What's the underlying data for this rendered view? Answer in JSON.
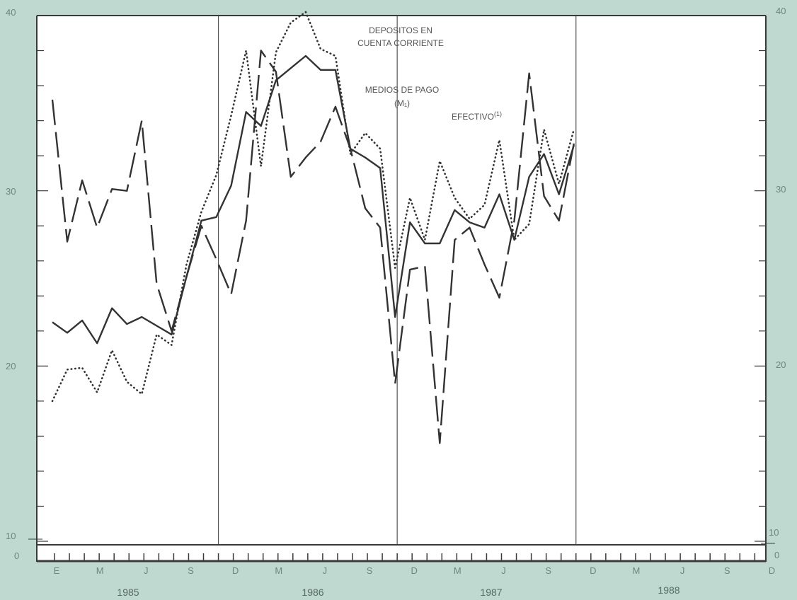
{
  "chart_data": {
    "type": "line",
    "title": "",
    "xlabel": "",
    "ylabel": "",
    "y_ticks_left": [
      "40",
      "30",
      "20",
      "10",
      "0"
    ],
    "y_ticks_right": [
      "40",
      "30",
      "20",
      "10",
      "0"
    ],
    "ylim": [
      0,
      40
    ],
    "axis_break": "between 0 and 10",
    "grid": "vertical lines at each December",
    "x_month_ticks": [
      "E",
      "M",
      "J",
      "S",
      "D",
      "M",
      "J",
      "S",
      "D",
      "M",
      "J",
      "S",
      "D",
      "M",
      "J",
      "S",
      "D"
    ],
    "x_years": [
      "1985",
      "1986",
      "1987",
      "1988"
    ],
    "x": [
      "E-1985",
      "F-1985",
      "M-1985",
      "A-1985",
      "M-1985",
      "J-1985",
      "J-1985",
      "A-1985",
      "S-1985",
      "O-1985",
      "N-1985",
      "D-1985",
      "E-1986",
      "F-1986",
      "M-1986",
      "A-1986",
      "M-1986",
      "J-1986",
      "J-1986",
      "A-1986",
      "S-1986",
      "O-1986",
      "N-1986",
      "D-1986",
      "E-1987",
      "F-1987",
      "M-1987",
      "A-1987",
      "M-1987",
      "J-1987",
      "J-1987",
      "A-1987",
      "S-1987",
      "O-1987",
      "N-1987",
      "D-1987"
    ],
    "series": [
      {
        "name": "MEDIOS DE PAGO",
        "name_sub": "(M₁)",
        "style": "solid",
        "values": [
          22.5,
          21.9,
          22.6,
          21.3,
          23.3,
          22.4,
          22.8,
          22.3,
          21.8,
          25.1,
          28.3,
          28.5,
          30.3,
          34.5,
          33.7,
          36.3,
          37,
          37.7,
          36.9,
          36.9,
          32.4,
          31.9,
          31.3,
          22.8,
          28.2,
          27,
          27,
          28.9,
          28.2,
          27.9,
          29.8,
          27.2,
          30.8,
          32.1,
          29.8,
          32.6
        ]
      },
      {
        "name": "DEPOSITOS EN",
        "name_line2": "CUENTA CORRIENTE",
        "style": "dotted",
        "values": [
          18,
          19.8,
          19.9,
          18.5,
          20.9,
          19.1,
          18.4,
          21.8,
          21.2,
          25.8,
          28.8,
          30.9,
          34.3,
          38,
          31.4,
          37.9,
          39.6,
          40.2,
          38.1,
          37.7,
          32.1,
          33.3,
          32.4,
          25.6,
          29.6,
          27.2,
          31.7,
          29.6,
          28.4,
          29.2,
          32.9,
          27.2,
          28.1,
          33.5,
          30.4,
          33.5
        ]
      },
      {
        "name": "EFECTIVO",
        "name_sup": "(1)",
        "style": "dashed",
        "values": [
          35.2,
          27.1,
          30.6,
          27.9,
          30.1,
          30,
          34,
          24.7,
          22,
          25.1,
          28,
          26.1,
          24.1,
          28.3,
          38,
          36.8,
          30.8,
          31.9,
          32.8,
          34.8,
          32.4,
          29,
          27.9,
          19,
          25.5,
          25.7,
          15.6,
          27.2,
          27.9,
          25.8,
          23.9,
          28.3,
          36.7,
          29.7,
          28.3,
          32.7
        ]
      }
    ]
  }
}
